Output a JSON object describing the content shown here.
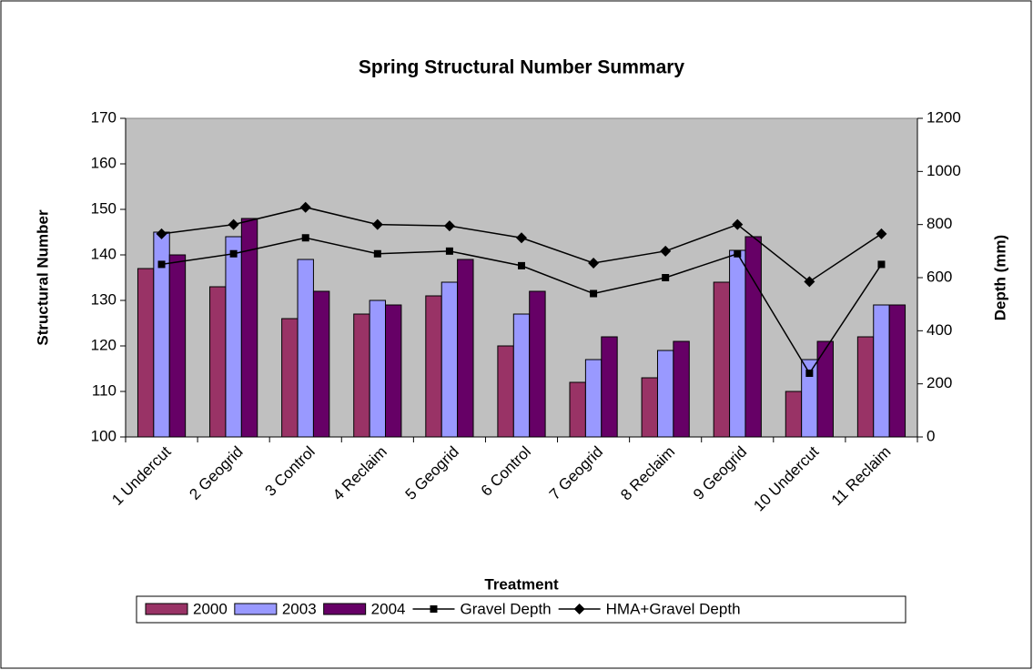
{
  "chart_data": {
    "type": "bar",
    "title": "Spring Structural Number Summary",
    "xlabel": "Treatment",
    "ylabel": "Structural Number",
    "y2label": "Depth (mm)",
    "categories": [
      "1 Undercut",
      "2 Geogrid",
      "3 Control",
      "4 Reclaim",
      "5 Geogrid",
      "6 Control",
      "7 Geogrid",
      "8 Reclaim",
      "9 Geogrid",
      "10 Undercut",
      "11 Reclaim"
    ],
    "ylim": [
      100,
      170
    ],
    "yticks": [
      100,
      110,
      120,
      130,
      140,
      150,
      160,
      170
    ],
    "y2lim": [
      0,
      1200
    ],
    "y2ticks": [
      0,
      200,
      400,
      600,
      800,
      1000,
      1200
    ],
    "plot_background": "#c0c0c0",
    "series": [
      {
        "name": "2000",
        "type": "bar",
        "color": "#993366",
        "values": [
          137,
          133,
          126,
          127,
          131,
          120,
          112,
          113,
          134,
          110,
          122
        ]
      },
      {
        "name": "2003",
        "type": "bar",
        "color": "#9999ff",
        "values": [
          145,
          144,
          139,
          130,
          134,
          127,
          117,
          119,
          141,
          117,
          129
        ]
      },
      {
        "name": "2004",
        "type": "bar",
        "color": "#660066",
        "values": [
          140,
          148,
          132,
          129,
          139,
          132,
          122,
          121,
          144,
          121,
          129
        ]
      },
      {
        "name": "Gravel Depth",
        "type": "line",
        "axis": "y2",
        "color": "#000000",
        "marker": "square",
        "values": [
          650,
          690,
          750,
          690,
          700,
          645,
          540,
          600,
          690,
          240,
          650
        ]
      },
      {
        "name": "HMA+Gravel Depth",
        "type": "line",
        "axis": "y2",
        "color": "#000000",
        "marker": "diamond",
        "values": [
          765,
          800,
          865,
          800,
          795,
          750,
          655,
          700,
          800,
          585,
          765
        ]
      }
    ]
  }
}
